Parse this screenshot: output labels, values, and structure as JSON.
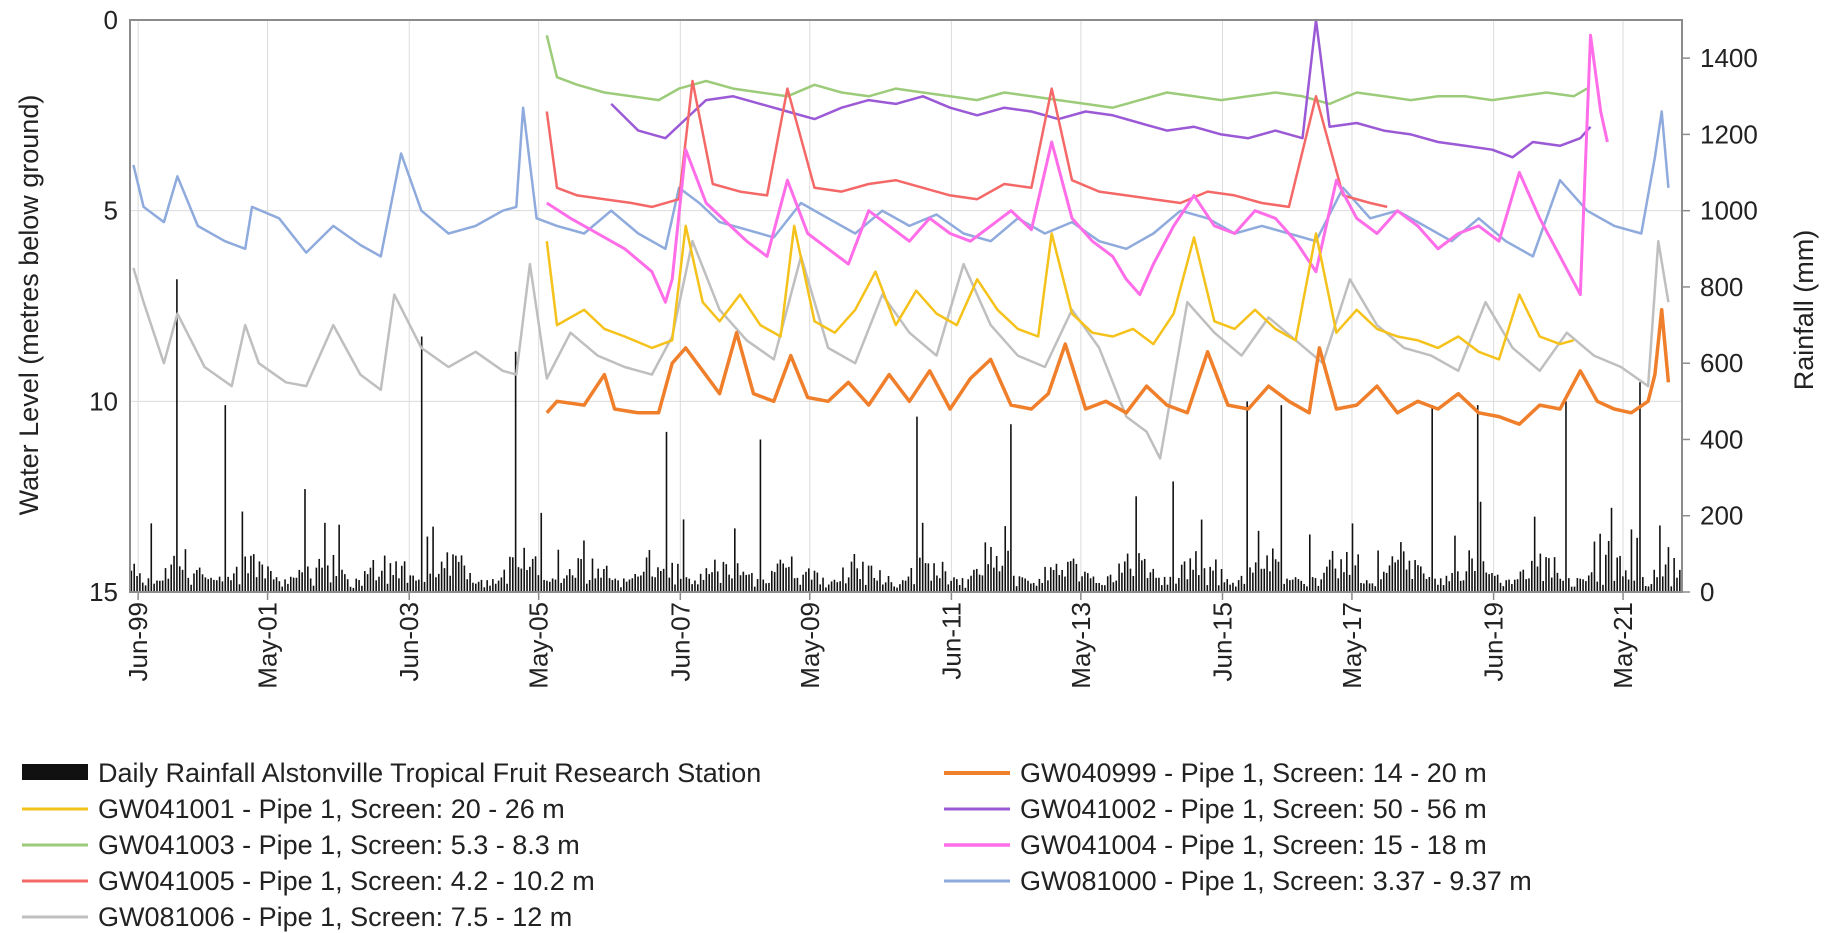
{
  "chart_data": {
    "type": "line",
    "title": "",
    "y_left": {
      "label": "Water Level (metres below ground)",
      "range": [
        0,
        15
      ],
      "inverted": true,
      "ticks": [
        "0",
        "5",
        "10",
        "15"
      ]
    },
    "y_right": {
      "label": "Rainfall (mm)",
      "range": [
        0,
        1500
      ],
      "ticks": [
        "0",
        "200",
        "400",
        "600",
        "800",
        "1000",
        "1200",
        "1400"
      ]
    },
    "x_axis": {
      "range": [
        1999.3,
        2022.2
      ],
      "tick_labels": [
        "Jun-99",
        "May-01",
        "Jun-03",
        "May-05",
        "Jun-07",
        "May-09",
        "Jun-11",
        "May-13",
        "Jun-15",
        "May-17",
        "Jun-19",
        "May-21"
      ],
      "tick_dates": [
        1999.42,
        2001.33,
        2003.42,
        2005.33,
        2007.42,
        2009.33,
        2011.42,
        2013.33,
        2015.42,
        2017.33,
        2019.42,
        2021.33
      ]
    },
    "grid": true,
    "legend_position": "bottom",
    "rainfall": {
      "name": "Daily Rainfall Alstonville Tropical Fruit Research Station",
      "color": "#111111",
      "peaks": [
        {
          "date": 1999.6,
          "mm": 180
        },
        {
          "date": 2000.0,
          "mm": 820
        },
        {
          "date": 2000.7,
          "mm": 490
        },
        {
          "date": 2001.9,
          "mm": 270
        },
        {
          "date": 2003.6,
          "mm": 670
        },
        {
          "date": 2005.0,
          "mm": 630
        },
        {
          "date": 2007.2,
          "mm": 420
        },
        {
          "date": 2008.6,
          "mm": 400
        },
        {
          "date": 2010.9,
          "mm": 460
        },
        {
          "date": 2012.3,
          "mm": 440
        },
        {
          "date": 2014.7,
          "mm": 290
        },
        {
          "date": 2015.8,
          "mm": 500
        },
        {
          "date": 2016.3,
          "mm": 490
        },
        {
          "date": 2018.5,
          "mm": 490
        },
        {
          "date": 2019.2,
          "mm": 490
        },
        {
          "date": 2020.5,
          "mm": 500
        },
        {
          "date": 2021.6,
          "mm": 550
        }
      ]
    },
    "series": [
      {
        "name": "GW040999 - Pipe 1, Screen: 14 - 20 m",
        "color": "#f07f2c",
        "width": 3.5,
        "x": [
          2005.45,
          2005.6,
          2006.0,
          2006.3,
          2006.45,
          2006.8,
          2007.1,
          2007.3,
          2007.5,
          2007.75,
          2008.0,
          2008.25,
          2008.5,
          2008.8,
          2009.05,
          2009.3,
          2009.6,
          2009.9,
          2010.2,
          2010.5,
          2010.8,
          2011.1,
          2011.4,
          2011.7,
          2012.0,
          2012.3,
          2012.6,
          2012.85,
          2013.1,
          2013.4,
          2013.7,
          2014.0,
          2014.3,
          2014.6,
          2014.9,
          2015.2,
          2015.5,
          2015.8,
          2016.1,
          2016.4,
          2016.7,
          2016.85,
          2017.1,
          2017.4,
          2017.7,
          2018.0,
          2018.3,
          2018.6,
          2018.9,
          2019.2,
          2019.5,
          2019.8,
          2020.1,
          2020.4,
          2020.7,
          2020.95,
          2021.2,
          2021.45,
          2021.7,
          2021.8,
          2021.9,
          2022.0
        ],
        "y": [
          10.3,
          10.0,
          10.1,
          9.3,
          10.2,
          10.3,
          10.3,
          9.0,
          8.6,
          9.2,
          9.8,
          8.2,
          9.8,
          10.0,
          8.8,
          9.9,
          10.0,
          9.5,
          10.1,
          9.3,
          10.0,
          9.2,
          10.2,
          9.4,
          8.9,
          10.1,
          10.2,
          9.8,
          8.5,
          10.2,
          10.0,
          10.3,
          9.6,
          10.1,
          10.3,
          8.7,
          10.1,
          10.2,
          9.6,
          10.0,
          10.3,
          8.6,
          10.2,
          10.1,
          9.6,
          10.3,
          10.0,
          10.2,
          9.8,
          10.3,
          10.4,
          10.6,
          10.1,
          10.2,
          9.2,
          10.0,
          10.2,
          10.3,
          10.0,
          9.3,
          7.6,
          9.5
        ]
      },
      {
        "name": "GW041001 - Pipe 1, Screen: 20 - 26 m",
        "color": "#f5c21b",
        "width": 2.5,
        "x": [
          2005.45,
          2005.6,
          2006.0,
          2006.3,
          2006.6,
          2007.0,
          2007.3,
          2007.5,
          2007.75,
          2008.0,
          2008.3,
          2008.6,
          2008.9,
          2009.1,
          2009.4,
          2009.7,
          2010.0,
          2010.3,
          2010.6,
          2010.9,
          2011.2,
          2011.5,
          2011.8,
          2012.1,
          2012.4,
          2012.7,
          2012.9,
          2013.2,
          2013.5,
          2013.8,
          2014.1,
          2014.4,
          2014.7,
          2015.0,
          2015.3,
          2015.6,
          2015.9,
          2016.2,
          2016.5,
          2016.8,
          2017.1,
          2017.4,
          2017.7,
          2018.0,
          2018.3,
          2018.6,
          2018.9,
          2019.2,
          2019.5,
          2019.8,
          2020.1,
          2020.4,
          2020.6
        ],
        "y": [
          5.8,
          8.0,
          7.6,
          8.1,
          8.3,
          8.6,
          8.4,
          5.4,
          7.4,
          7.9,
          7.2,
          8.0,
          8.3,
          5.4,
          7.9,
          8.2,
          7.6,
          6.6,
          8.0,
          7.1,
          7.7,
          8.0,
          6.8,
          7.6,
          8.1,
          8.3,
          5.6,
          7.7,
          8.2,
          8.3,
          8.1,
          8.5,
          7.7,
          5.7,
          7.9,
          8.1,
          7.6,
          8.1,
          8.4,
          5.6,
          8.2,
          7.6,
          8.1,
          8.3,
          8.4,
          8.6,
          8.3,
          8.7,
          8.9,
          7.2,
          8.3,
          8.5,
          8.4
        ]
      },
      {
        "name": "GW041002 - Pipe 1, Screen: 50 - 56 m",
        "color": "#9b59d6",
        "width": 2.5,
        "x": [
          2006.4,
          2006.8,
          2007.2,
          2007.5,
          2007.8,
          2008.2,
          2008.6,
          2009.0,
          2009.4,
          2009.8,
          2010.2,
          2010.6,
          2011.0,
          2011.4,
          2011.8,
          2012.2,
          2012.6,
          2013.0,
          2013.4,
          2013.8,
          2014.2,
          2014.6,
          2015.0,
          2015.4,
          2015.8,
          2016.2,
          2016.6,
          2016.8,
          2017.0,
          2017.4,
          2017.8,
          2018.2,
          2018.6,
          2019.0,
          2019.4,
          2019.7,
          2020.0,
          2020.4,
          2020.7,
          2020.85
        ],
        "y": [
          2.2,
          2.9,
          3.1,
          2.6,
          2.1,
          2.0,
          2.2,
          2.4,
          2.6,
          2.3,
          2.1,
          2.2,
          2.0,
          2.3,
          2.5,
          2.3,
          2.4,
          2.6,
          2.4,
          2.5,
          2.7,
          2.9,
          2.8,
          3.0,
          3.1,
          2.9,
          3.1,
          0.0,
          2.8,
          2.7,
          2.9,
          3.0,
          3.2,
          3.3,
          3.4,
          3.6,
          3.2,
          3.3,
          3.1,
          2.8
        ]
      },
      {
        "name": "GW041003 - Pipe 1, Screen: 5.3 - 8.3 m",
        "color": "#9ccb7a",
        "width": 2.5,
        "x": [
          2005.45,
          2005.6,
          2005.9,
          2006.3,
          2006.7,
          2007.1,
          2007.4,
          2007.8,
          2008.2,
          2008.6,
          2009.0,
          2009.4,
          2009.8,
          2010.2,
          2010.6,
          2011.0,
          2011.4,
          2011.8,
          2012.2,
          2012.6,
          2013.0,
          2013.4,
          2013.8,
          2014.2,
          2014.6,
          2015.0,
          2015.4,
          2015.8,
          2016.2,
          2016.6,
          2017.0,
          2017.4,
          2017.8,
          2018.2,
          2018.6,
          2019.0,
          2019.4,
          2019.8,
          2020.2,
          2020.6,
          2020.8
        ],
        "y": [
          0.4,
          1.5,
          1.7,
          1.9,
          2.0,
          2.1,
          1.8,
          1.6,
          1.8,
          1.9,
          2.0,
          1.7,
          1.9,
          2.0,
          1.8,
          1.9,
          2.0,
          2.1,
          1.9,
          2.0,
          2.1,
          2.2,
          2.3,
          2.1,
          1.9,
          2.0,
          2.1,
          2.0,
          1.9,
          2.0,
          2.2,
          1.9,
          2.0,
          2.1,
          2.0,
          2.0,
          2.1,
          2.0,
          1.9,
          2.0,
          1.8
        ]
      },
      {
        "name": "GW041004 - Pipe 1, Screen: 15 - 18 m",
        "color": "#ff6de8",
        "width": 3,
        "x": [
          2005.45,
          2005.8,
          2006.2,
          2006.6,
          2007.0,
          2007.2,
          2007.3,
          2007.5,
          2007.8,
          2008.1,
          2008.4,
          2008.7,
          2009.0,
          2009.3,
          2009.6,
          2009.9,
          2010.2,
          2010.5,
          2010.8,
          2011.1,
          2011.4,
          2011.7,
          2012.0,
          2012.3,
          2012.6,
          2012.9,
          2013.2,
          2013.5,
          2013.8,
          2014.0,
          2014.2,
          2014.4,
          2014.7,
          2015.0,
          2015.3,
          2015.6,
          2015.9,
          2016.2,
          2016.5,
          2016.8,
          2017.1,
          2017.4,
          2017.7,
          2018.0,
          2018.3,
          2018.6,
          2018.9,
          2019.2,
          2019.5,
          2019.8,
          2020.1,
          2020.4,
          2020.7,
          2020.85,
          2021.0,
          2021.1
        ],
        "y": [
          4.8,
          5.2,
          5.6,
          6.0,
          6.6,
          7.4,
          6.8,
          3.4,
          4.8,
          5.3,
          5.8,
          6.2,
          4.2,
          5.6,
          6.0,
          6.4,
          5.0,
          5.4,
          5.8,
          5.2,
          5.6,
          5.8,
          5.4,
          5.0,
          5.5,
          3.2,
          5.2,
          5.8,
          6.2,
          6.8,
          7.2,
          6.4,
          5.4,
          4.6,
          5.4,
          5.6,
          5.0,
          5.2,
          5.8,
          6.6,
          4.2,
          5.2,
          5.6,
          5.0,
          5.4,
          6.0,
          5.6,
          5.4,
          5.8,
          4.0,
          5.2,
          6.2,
          7.2,
          0.4,
          2.4,
          3.2
        ]
      },
      {
        "name": "GW041005 - Pipe 1, Screen: 4.2 - 10.2 m",
        "color": "#f46868",
        "width": 2.5,
        "x": [
          2005.45,
          2005.6,
          2005.9,
          2006.3,
          2006.7,
          2007.0,
          2007.4,
          2007.6,
          2007.9,
          2008.3,
          2008.7,
          2009.0,
          2009.4,
          2009.8,
          2010.2,
          2010.6,
          2011.0,
          2011.4,
          2011.8,
          2012.2,
          2012.6,
          2012.9,
          2013.2,
          2013.6,
          2014.0,
          2014.4,
          2014.8,
          2015.2,
          2015.6,
          2016.0,
          2016.4,
          2016.8,
          2017.2,
          2017.6,
          2017.85
        ],
        "y": [
          2.4,
          4.4,
          4.6,
          4.7,
          4.8,
          4.9,
          4.7,
          1.6,
          4.3,
          4.5,
          4.6,
          1.8,
          4.4,
          4.5,
          4.3,
          4.2,
          4.4,
          4.6,
          4.7,
          4.3,
          4.4,
          1.8,
          4.2,
          4.5,
          4.6,
          4.7,
          4.8,
          4.5,
          4.6,
          4.8,
          4.9,
          2.0,
          4.6,
          4.8,
          4.9
        ]
      },
      {
        "name": "GW081000 - Pipe 1, Screen: 3.37 - 9.37 m",
        "color": "#8faadc",
        "width": 2.5,
        "x": [
          1999.35,
          1999.5,
          1999.8,
          2000.0,
          2000.3,
          2000.7,
          2001.0,
          2001.1,
          2001.5,
          2001.9,
          2002.3,
          2002.7,
          2003.0,
          2003.3,
          2003.6,
          2004.0,
          2004.4,
          2004.8,
          2005.0,
          2005.1,
          2005.3,
          2005.6,
          2006.0,
          2006.4,
          2006.8,
          2007.2,
          2007.4,
          2007.7,
          2008.0,
          2008.4,
          2008.8,
          2009.2,
          2009.6,
          2010.0,
          2010.4,
          2010.8,
          2011.2,
          2011.6,
          2012.0,
          2012.4,
          2012.8,
          2013.2,
          2013.6,
          2014.0,
          2014.4,
          2014.8,
          2015.2,
          2015.6,
          2016.0,
          2016.4,
          2016.8,
          2017.2,
          2017.6,
          2018.0,
          2018.4,
          2018.8,
          2019.2,
          2019.6,
          2020.0,
          2020.4,
          2020.8,
          2021.2,
          2021.6,
          2021.8,
          2021.9,
          2022.0
        ],
        "y": [
          3.8,
          4.9,
          5.3,
          4.1,
          5.4,
          5.8,
          6.0,
          4.9,
          5.2,
          6.1,
          5.4,
          5.9,
          6.2,
          3.5,
          5.0,
          5.6,
          5.4,
          5.0,
          4.9,
          2.3,
          5.2,
          5.4,
          5.6,
          5.0,
          5.6,
          6.0,
          4.4,
          4.8,
          5.3,
          5.5,
          5.7,
          4.8,
          5.2,
          5.6,
          5.0,
          5.4,
          5.1,
          5.6,
          5.8,
          5.2,
          5.6,
          5.3,
          5.8,
          6.0,
          5.6,
          5.0,
          5.2,
          5.6,
          5.4,
          5.6,
          5.8,
          4.4,
          5.2,
          5.0,
          5.4,
          5.8,
          5.2,
          5.8,
          6.2,
          4.2,
          5.0,
          5.4,
          5.6,
          3.6,
          2.4,
          4.4
        ]
      },
      {
        "name": "GW081006 - Pipe 1, Screen: 7.5 - 12 m",
        "color": "#bfbfbf",
        "width": 2.5,
        "x": [
          1999.35,
          1999.5,
          1999.8,
          2000.0,
          2000.4,
          2000.8,
          2001.0,
          2001.2,
          2001.6,
          2001.9,
          2002.3,
          2002.7,
          2003.0,
          2003.2,
          2003.6,
          2004.0,
          2004.4,
          2004.8,
          2005.0,
          2005.2,
          2005.45,
          2005.8,
          2006.2,
          2006.6,
          2007.0,
          2007.3,
          2007.6,
          2008.0,
          2008.4,
          2008.8,
          2009.2,
          2009.6,
          2010.0,
          2010.4,
          2010.8,
          2011.2,
          2011.6,
          2012.0,
          2012.4,
          2012.8,
          2013.2,
          2013.6,
          2014.0,
          2014.3,
          2014.5,
          2014.9,
          2015.3,
          2015.7,
          2016.1,
          2016.5,
          2016.9,
          2017.3,
          2017.7,
          2018.1,
          2018.5,
          2018.9,
          2019.3,
          2019.7,
          2020.1,
          2020.5,
          2020.9,
          2021.3,
          2021.7,
          2021.85,
          2022.0
        ],
        "y": [
          6.5,
          7.4,
          9.0,
          7.7,
          9.1,
          9.6,
          8.0,
          9.0,
          9.5,
          9.6,
          8.0,
          9.3,
          9.7,
          7.2,
          8.6,
          9.1,
          8.7,
          9.2,
          9.3,
          6.4,
          9.4,
          8.2,
          8.8,
          9.1,
          9.3,
          8.3,
          5.8,
          7.6,
          8.4,
          8.9,
          6.2,
          8.6,
          9.0,
          7.2,
          8.2,
          8.8,
          6.4,
          8.0,
          8.8,
          9.1,
          7.6,
          8.6,
          10.4,
          10.8,
          11.5,
          7.4,
          8.2,
          8.8,
          7.8,
          8.4,
          9.0,
          6.8,
          8.0,
          8.6,
          8.8,
          9.2,
          7.4,
          8.6,
          9.2,
          8.2,
          8.8,
          9.1,
          9.6,
          5.8,
          7.4
        ]
      }
    ]
  }
}
